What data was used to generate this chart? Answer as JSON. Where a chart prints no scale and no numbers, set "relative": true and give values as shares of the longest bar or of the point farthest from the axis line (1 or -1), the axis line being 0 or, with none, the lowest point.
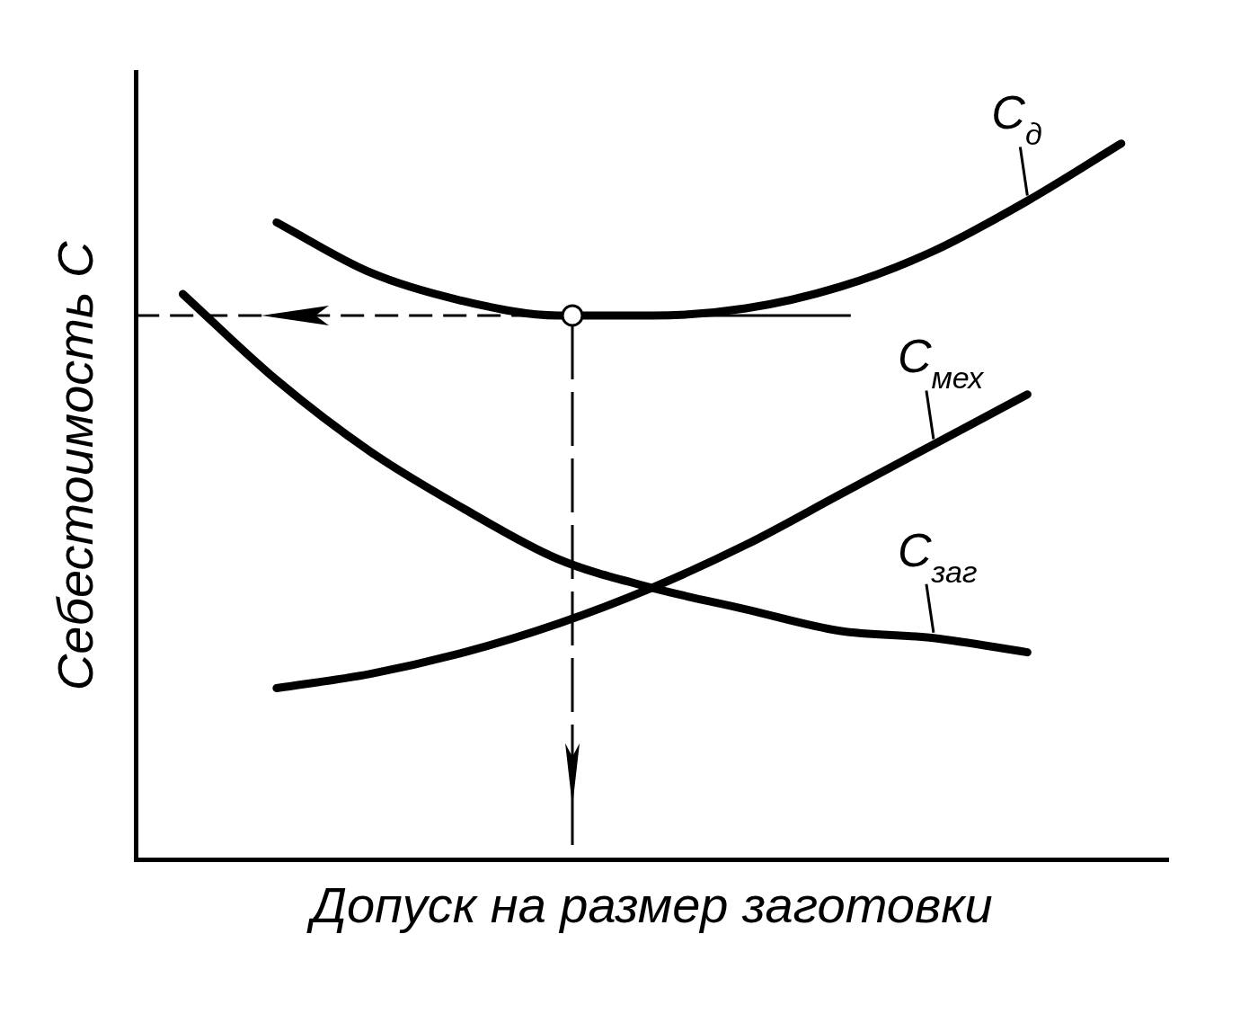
{
  "chart_data": {
    "type": "line",
    "relative": true,
    "xlabel": "Допуск на размер заготовки",
    "ylabel": "Себестоимость С",
    "categories": [
      null,
      null,
      null,
      null,
      null,
      null,
      null,
      null,
      null,
      null,
      null
    ],
    "series": [
      {
        "name": "С$_{д}$",
        "color": "#000000",
        "values": [
          null,
          0.89,
          0.82,
          0.78,
          0.76,
          0.76,
          0.77,
          0.8,
          0.85,
          0.92,
          1
        ]
      },
      {
        "name": "С$_{мех}$",
        "color": "#000000",
        "values": [
          null,
          0.24,
          0.26,
          0.29,
          0.33,
          0.38,
          0.44,
          0.51,
          0.58,
          0.65,
          null
        ]
      },
      {
        "name": "С$_{заг}$",
        "color": "#000000",
        "values": [
          0.79,
          0.67,
          0.57,
          0.49,
          0.42,
          0.38,
          0.35,
          0.32,
          0.31,
          0.29,
          null
        ]
      }
    ],
    "ref_lines": [
      {
        "axis": "y",
        "value": 0.76,
        "line_style": "dashed",
        "color": "#000000"
      }
    ],
    "marker": "none",
    "line_style": "solid",
    "grid": false,
    "legend": false
  }
}
